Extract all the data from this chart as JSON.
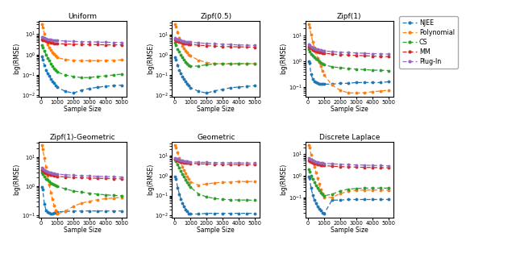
{
  "titles": [
    "Uniform",
    "Zipf(0.5)",
    "Zipf(1)",
    "Zipf(1)-Geometric",
    "Geometric",
    "Discrete Laplace"
  ],
  "xlabel": "Sample Size",
  "ylabel": "log(RMSE)",
  "legend_labels": [
    "NJEE",
    "Polynomial",
    "CS",
    "MM",
    "Plug-In"
  ],
  "colors": [
    "#1f77b4",
    "#ff7f0e",
    "#2ca02c",
    "#d62728",
    "#9467bd"
  ],
  "x": [
    50,
    100,
    200,
    300,
    400,
    500,
    600,
    700,
    800,
    900,
    1000,
    1500,
    2000,
    2500,
    3000,
    3500,
    4000,
    4500,
    5000
  ],
  "data": {
    "Uniform": {
      "NJEE": [
        0.8,
        0.55,
        0.3,
        0.18,
        0.12,
        0.09,
        0.065,
        0.05,
        0.04,
        0.032,
        0.025,
        0.016,
        0.013,
        0.018,
        0.022,
        0.025,
        0.028,
        0.03,
        0.032
      ],
      "Polynomial": [
        30,
        22,
        10,
        5.5,
        3.2,
        2.2,
        1.7,
        1.3,
        1.05,
        0.85,
        0.72,
        0.57,
        0.53,
        0.5,
        0.5,
        0.5,
        0.51,
        0.53,
        0.55
      ],
      "CS": [
        3.0,
        2.2,
        1.5,
        1.0,
        0.7,
        0.5,
        0.37,
        0.28,
        0.21,
        0.17,
        0.14,
        0.1,
        0.085,
        0.075,
        0.075,
        0.085,
        0.09,
        0.1,
        0.11
      ],
      "MM": [
        5.5,
        5.2,
        4.8,
        4.5,
        4.2,
        4.0,
        3.8,
        3.7,
        3.6,
        3.5,
        3.45,
        3.3,
        3.2,
        3.15,
        3.1,
        3.05,
        3.0,
        3.0,
        3.0
      ],
      "Plug-In": [
        7.5,
        7.0,
        6.5,
        6.0,
        5.7,
        5.5,
        5.3,
        5.1,
        5.0,
        4.9,
        4.8,
        4.6,
        4.4,
        4.3,
        4.2,
        4.1,
        4.0,
        3.95,
        3.9
      ]
    },
    "Zipf(0.5)": {
      "NJEE": [
        0.75,
        0.58,
        0.32,
        0.18,
        0.12,
        0.088,
        0.062,
        0.048,
        0.038,
        0.03,
        0.024,
        0.016,
        0.013,
        0.017,
        0.02,
        0.024,
        0.026,
        0.028,
        0.03
      ],
      "Polynomial": [
        32,
        25,
        13,
        7.0,
        4.2,
        2.8,
        2.1,
        1.65,
        1.3,
        1.05,
        0.88,
        0.55,
        0.42,
        0.38,
        0.36,
        0.36,
        0.36,
        0.37,
        0.37
      ],
      "CS": [
        4.0,
        3.0,
        2.0,
        1.4,
        1.0,
        0.75,
        0.58,
        0.46,
        0.38,
        0.32,
        0.28,
        0.28,
        0.33,
        0.36,
        0.37,
        0.37,
        0.37,
        0.37,
        0.37
      ],
      "MM": [
        5.5,
        5.0,
        4.7,
        4.4,
        4.2,
        4.0,
        3.8,
        3.65,
        3.5,
        3.4,
        3.3,
        3.0,
        2.85,
        2.7,
        2.6,
        2.55,
        2.5,
        2.45,
        2.4
      ],
      "Plug-In": [
        7.0,
        6.5,
        6.0,
        5.6,
        5.2,
        4.9,
        4.7,
        4.5,
        4.4,
        4.3,
        4.2,
        3.9,
        3.7,
        3.5,
        3.4,
        3.25,
        3.1,
        3.05,
        2.9
      ]
    },
    "Zipf(1)": {
      "NJEE": [
        1.0,
        0.85,
        0.32,
        0.2,
        0.17,
        0.15,
        0.14,
        0.13,
        0.13,
        0.13,
        0.13,
        0.13,
        0.14,
        0.14,
        0.15,
        0.15,
        0.15,
        0.15,
        0.16
      ],
      "Polynomial": [
        28,
        22,
        11,
        6.0,
        3.5,
        2.2,
        1.4,
        0.95,
        0.65,
        0.42,
        0.3,
        0.12,
        0.075,
        0.06,
        0.058,
        0.06,
        0.065,
        0.07,
        0.075
      ],
      "CS": [
        3.0,
        2.5,
        2.0,
        1.75,
        1.5,
        1.3,
        1.15,
        1.0,
        0.9,
        0.82,
        0.75,
        0.62,
        0.57,
        0.53,
        0.5,
        0.48,
        0.46,
        0.45,
        0.44
      ],
      "MM": [
        3.8,
        3.5,
        3.2,
        2.9,
        2.7,
        2.55,
        2.4,
        2.3,
        2.2,
        2.15,
        2.1,
        1.95,
        1.85,
        1.78,
        1.72,
        1.67,
        1.62,
        1.58,
        1.55
      ],
      "Plug-In": [
        4.5,
        4.2,
        3.8,
        3.5,
        3.3,
        3.1,
        2.95,
        2.82,
        2.72,
        2.65,
        2.58,
        2.42,
        2.32,
        2.22,
        2.15,
        2.08,
        2.02,
        1.97,
        1.93
      ]
    },
    "Zipf(1)-Geometric": {
      "NJEE": [
        0.95,
        0.75,
        0.25,
        0.15,
        0.13,
        0.12,
        0.11,
        0.115,
        0.12,
        0.12,
        0.13,
        0.135,
        0.14,
        0.14,
        0.14,
        0.14,
        0.14,
        0.14,
        0.14
      ],
      "Polynomial": [
        25,
        18,
        9.0,
        4.5,
        2.2,
        1.1,
        0.6,
        0.35,
        0.22,
        0.15,
        0.11,
        0.14,
        0.2,
        0.26,
        0.3,
        0.34,
        0.37,
        0.39,
        0.41
      ],
      "CS": [
        3.0,
        2.6,
        2.1,
        1.8,
        1.6,
        1.45,
        1.3,
        1.2,
        1.1,
        1.05,
        0.98,
        0.8,
        0.68,
        0.62,
        0.57,
        0.53,
        0.5,
        0.48,
        0.46
      ],
      "MM": [
        3.5,
        3.3,
        3.0,
        2.8,
        2.65,
        2.55,
        2.45,
        2.35,
        2.28,
        2.22,
        2.17,
        2.05,
        1.98,
        1.93,
        1.88,
        1.85,
        1.82,
        1.8,
        1.78
      ],
      "Plug-In": [
        4.2,
        3.9,
        3.6,
        3.35,
        3.15,
        3.0,
        2.88,
        2.78,
        2.7,
        2.63,
        2.58,
        2.45,
        2.36,
        2.28,
        2.22,
        2.17,
        2.12,
        2.08,
        2.05
      ]
    },
    "Geometric": {
      "NJEE": [
        0.85,
        0.65,
        0.25,
        0.12,
        0.068,
        0.042,
        0.028,
        0.02,
        0.016,
        0.013,
        0.012,
        0.012,
        0.013,
        0.013,
        0.013,
        0.013,
        0.013,
        0.013,
        0.013
      ],
      "Polynomial": [
        32,
        26,
        14,
        7.5,
        4.5,
        2.8,
        1.9,
        1.3,
        0.9,
        0.65,
        0.48,
        0.33,
        0.38,
        0.43,
        0.46,
        0.48,
        0.5,
        0.5,
        0.5
      ],
      "CS": [
        6.0,
        5.0,
        3.5,
        2.4,
        1.7,
        1.2,
        0.85,
        0.62,
        0.46,
        0.34,
        0.26,
        0.12,
        0.085,
        0.072,
        0.065,
        0.062,
        0.06,
        0.06,
        0.058
      ],
      "MM": [
        6.5,
        6.0,
        5.5,
        5.1,
        4.8,
        4.6,
        4.45,
        4.3,
        4.2,
        4.1,
        4.05,
        3.85,
        3.75,
        3.68,
        3.62,
        3.57,
        3.52,
        3.5,
        3.48
      ],
      "Plug-In": [
        7.5,
        7.0,
        6.5,
        6.1,
        5.8,
        5.5,
        5.3,
        5.1,
        5.0,
        4.9,
        4.8,
        4.6,
        4.5,
        4.42,
        4.36,
        4.3,
        4.25,
        4.22,
        4.18
      ]
    },
    "Discrete Laplace": {
      "NJEE": [
        0.9,
        0.75,
        0.28,
        0.13,
        0.075,
        0.052,
        0.038,
        0.03,
        0.024,
        0.02,
        0.017,
        0.075,
        0.075,
        0.08,
        0.08,
        0.08,
        0.08,
        0.08,
        0.08
      ],
      "Polynomial": [
        26,
        20,
        9.5,
        5.0,
        2.6,
        1.4,
        0.75,
        0.42,
        0.24,
        0.15,
        0.1,
        0.1,
        0.15,
        0.19,
        0.21,
        0.22,
        0.22,
        0.22,
        0.22
      ],
      "CS": [
        2.0,
        1.6,
        1.0,
        0.7,
        0.5,
        0.37,
        0.27,
        0.21,
        0.17,
        0.14,
        0.12,
        0.14,
        0.2,
        0.24,
        0.26,
        0.27,
        0.27,
        0.27,
        0.27
      ],
      "MM": [
        5.0,
        4.7,
        4.3,
        4.0,
        3.8,
        3.6,
        3.45,
        3.3,
        3.2,
        3.1,
        3.0,
        2.8,
        2.68,
        2.6,
        2.54,
        2.48,
        2.43,
        2.4,
        2.37
      ],
      "Plug-In": [
        6.5,
        6.0,
        5.5,
        5.1,
        4.8,
        4.5,
        4.3,
        4.1,
        4.0,
        3.9,
        3.8,
        3.6,
        3.45,
        3.32,
        3.22,
        3.13,
        3.05,
        2.99,
        2.93
      ]
    }
  }
}
